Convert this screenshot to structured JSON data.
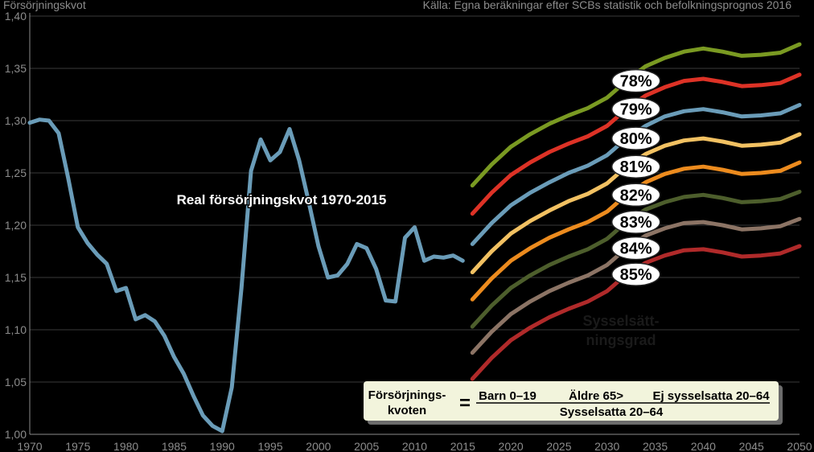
{
  "header": {
    "ylabel": "Försörjningskvot",
    "source": "Källa: Egna beräkningar efter SCBs statistik och befolkningsprognos 2016"
  },
  "chart_data": {
    "type": "line",
    "title": "",
    "ylabel": "Försörjningskvot",
    "xlabel": "",
    "xlim": [
      1970,
      2050
    ],
    "ylim": [
      1.0,
      1.4
    ],
    "x_ticks": [
      "1970",
      "1975",
      "1980",
      "1985",
      "1990",
      "1995",
      "2000",
      "2005",
      "2010",
      "2015",
      "2020",
      "2025",
      "2030",
      "2035",
      "2040",
      "2045",
      "2050"
    ],
    "y_ticks": [
      "1,00",
      "1,05",
      "1,10",
      "1,15",
      "1,20",
      "1,25",
      "1,30",
      "1,35",
      "1,40"
    ],
    "grid": true,
    "historical": {
      "name": "Real försörjningskvot 1970-2015",
      "color": "#6a9cb8",
      "x": [
        1970,
        1971,
        1972,
        1973,
        1974,
        1975,
        1976,
        1977,
        1978,
        1979,
        1980,
        1981,
        1982,
        1983,
        1984,
        1985,
        1986,
        1987,
        1988,
        1989,
        1990,
        1991,
        1992,
        1993,
        1994,
        1995,
        1996,
        1997,
        1998,
        1999,
        2000,
        2001,
        2002,
        2003,
        2004,
        2005,
        2006,
        2007,
        2008,
        2009,
        2010,
        2011,
        2012,
        2013,
        2014,
        2015
      ],
      "y": [
        1.298,
        1.301,
        1.3,
        1.288,
        1.245,
        1.198,
        1.183,
        1.172,
        1.163,
        1.137,
        1.14,
        1.11,
        1.114,
        1.108,
        1.094,
        1.074,
        1.058,
        1.037,
        1.018,
        1.008,
        1.003,
        1.045,
        1.14,
        1.252,
        1.282,
        1.262,
        1.27,
        1.292,
        1.262,
        1.222,
        1.18,
        1.15,
        1.152,
        1.163,
        1.182,
        1.178,
        1.158,
        1.128,
        1.127,
        1.188,
        1.198,
        1.166,
        1.17,
        1.169,
        1.171,
        1.166
      ]
    },
    "projection_x": [
      2016,
      2018,
      2020,
      2022,
      2024,
      2026,
      2028,
      2030,
      2032,
      2034,
      2036,
      2038,
      2040,
      2042,
      2044,
      2046,
      2048,
      2050
    ],
    "series": [
      {
        "name": "78%",
        "color": "#7a9a22",
        "values": [
          1.238,
          1.258,
          1.275,
          1.287,
          1.297,
          1.305,
          1.312,
          1.322,
          1.338,
          1.352,
          1.36,
          1.366,
          1.369,
          1.366,
          1.362,
          1.363,
          1.365,
          1.373
        ]
      },
      {
        "name": "79%",
        "color": "#dd3226",
        "values": [
          1.211,
          1.231,
          1.248,
          1.26,
          1.27,
          1.278,
          1.285,
          1.295,
          1.311,
          1.324,
          1.332,
          1.338,
          1.34,
          1.337,
          1.333,
          1.334,
          1.336,
          1.344
        ]
      },
      {
        "name": "80%",
        "color": "#6a9cb8",
        "values": [
          1.182,
          1.202,
          1.219,
          1.231,
          1.241,
          1.25,
          1.257,
          1.267,
          1.283,
          1.295,
          1.304,
          1.309,
          1.311,
          1.308,
          1.304,
          1.305,
          1.307,
          1.315
        ]
      },
      {
        "name": "81%",
        "color": "#f2c162",
        "values": [
          1.155,
          1.175,
          1.192,
          1.204,
          1.214,
          1.223,
          1.23,
          1.24,
          1.256,
          1.268,
          1.276,
          1.281,
          1.283,
          1.28,
          1.276,
          1.277,
          1.279,
          1.287
        ]
      },
      {
        "name": "82%",
        "color": "#ec8b1e",
        "values": [
          1.129,
          1.149,
          1.166,
          1.178,
          1.188,
          1.196,
          1.203,
          1.213,
          1.229,
          1.241,
          1.249,
          1.254,
          1.256,
          1.253,
          1.249,
          1.25,
          1.252,
          1.26
        ]
      },
      {
        "name": "83%",
        "color": "#4d5e2c",
        "values": [
          1.103,
          1.123,
          1.14,
          1.152,
          1.162,
          1.17,
          1.177,
          1.187,
          1.203,
          1.215,
          1.222,
          1.227,
          1.229,
          1.226,
          1.222,
          1.223,
          1.225,
          1.232
        ]
      },
      {
        "name": "84%",
        "color": "#8c7465",
        "values": [
          1.078,
          1.098,
          1.115,
          1.127,
          1.137,
          1.145,
          1.152,
          1.162,
          1.178,
          1.19,
          1.197,
          1.202,
          1.203,
          1.2,
          1.196,
          1.197,
          1.199,
          1.206
        ]
      },
      {
        "name": "85%",
        "color": "#b02a2a",
        "values": [
          1.053,
          1.073,
          1.09,
          1.102,
          1.112,
          1.12,
          1.127,
          1.137,
          1.153,
          1.164,
          1.171,
          1.176,
          1.177,
          1.174,
          1.17,
          1.171,
          1.173,
          1.18
        ]
      }
    ],
    "annotations": {
      "historical_label": "Real försörjningskvot 1970-2015",
      "employment_rate_line1": "Sysselsätt-",
      "employment_rate_line2": "ningsgrad"
    }
  },
  "formula": {
    "lhs_line1": "Försörjnings-",
    "lhs_line2": "kvoten",
    "equals": "=",
    "numerator_1": "Barn 0–19",
    "numerator_2": "Äldre 65>",
    "numerator_3": "Ej sysselsatta 20–64",
    "denominator": "Sysselsatta 20–64"
  },
  "colors": {
    "background": "#000000",
    "grid": "#3a3a3a",
    "axis_text": "#8c8c8c",
    "formula_box": "#f2f4dc"
  }
}
